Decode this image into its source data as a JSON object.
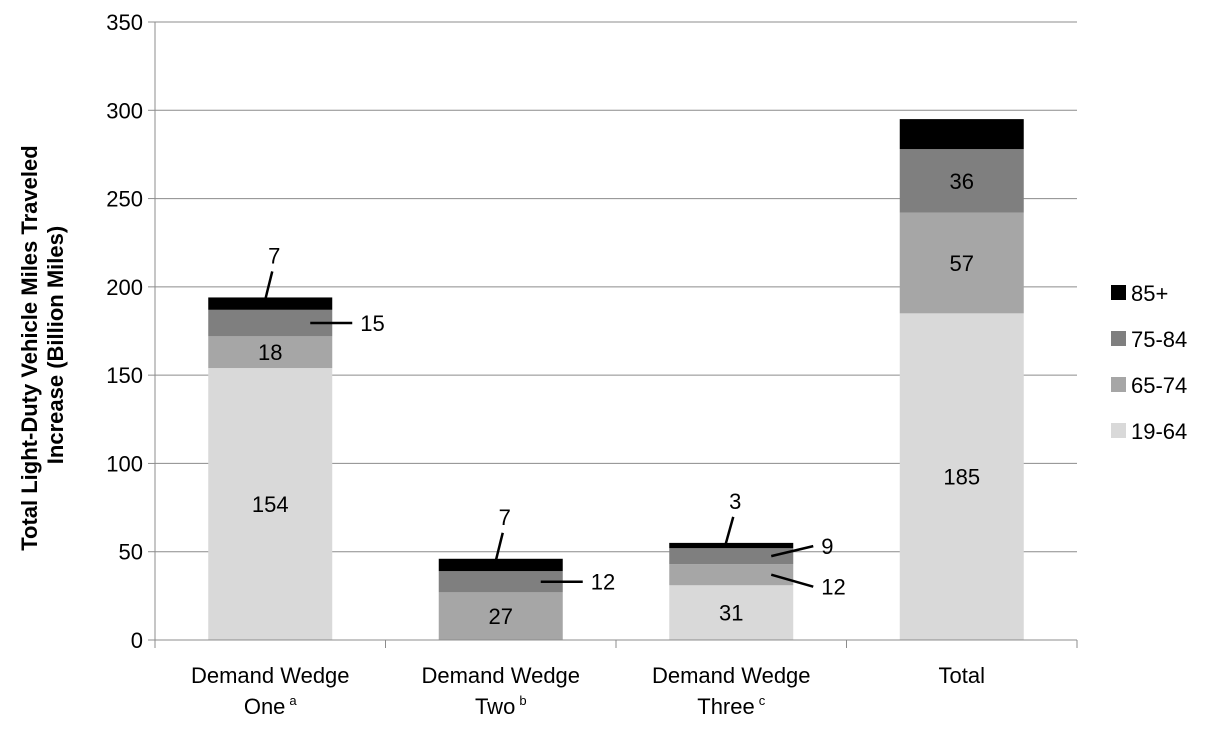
{
  "chart_data": {
    "type": "bar",
    "stacked": true,
    "categories": [
      {
        "line1": "Demand Wedge",
        "line2": "One",
        "sup": "a"
      },
      {
        "line1": "Demand Wedge",
        "line2": "Two",
        "sup": "b"
      },
      {
        "line1": "Demand Wedge",
        "line2": "Three",
        "sup": "c"
      },
      {
        "line1": "Total",
        "line2": "",
        "sup": ""
      }
    ],
    "series": [
      {
        "name": "19-64",
        "color": "#d9d9d9",
        "values": [
          154,
          0,
          31,
          185
        ]
      },
      {
        "name": "65-74",
        "color": "#a6a6a6",
        "values": [
          18,
          27,
          12,
          57
        ]
      },
      {
        "name": "75-84",
        "color": "#7f7f7f",
        "values": [
          15,
          12,
          9,
          36
        ]
      },
      {
        "name": "85+",
        "color": "#000000",
        "values": [
          7,
          7,
          3,
          17
        ]
      }
    ],
    "ylabel_lines": [
      "Total Light-Duty Vehicle Miles Traveled",
      "Increase (Billion Miles)"
    ],
    "ylim": [
      0,
      350
    ],
    "yticks": [
      0,
      50,
      100,
      150,
      200,
      250,
      300,
      350
    ],
    "grid": true,
    "legend_position": "right"
  }
}
